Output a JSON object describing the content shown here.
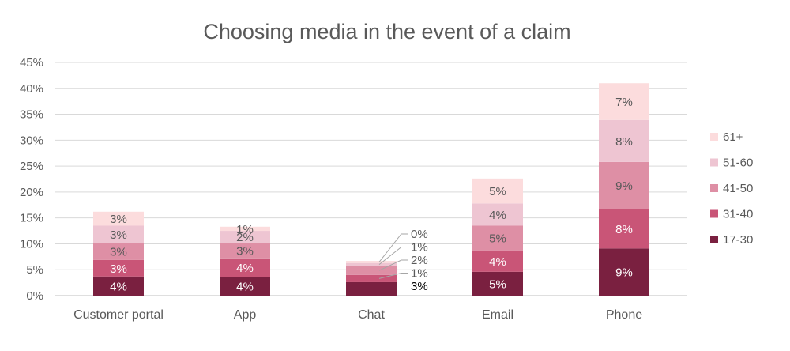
{
  "chart_data": {
    "type": "bar",
    "stacked": true,
    "title": "Choosing media in the event of a claim",
    "categories": [
      "Customer portal",
      "App",
      "Chat",
      "Email",
      "Phone"
    ],
    "ylim": [
      0,
      45
    ],
    "yticks": [
      "0%",
      "5%",
      "10%",
      "15%",
      "20%",
      "25%",
      "30%",
      "35%",
      "40%",
      "45%"
    ],
    "grid": true,
    "legend_position": "right",
    "series": [
      {
        "name": "17-30",
        "color": "#7a2040",
        "values": [
          3.7,
          3.6,
          2.6,
          4.6,
          9.1
        ],
        "labels": [
          "4%",
          "4%",
          "3%",
          "5%",
          "9%"
        ]
      },
      {
        "name": "31-40",
        "color": "#c95577",
        "values": [
          3.2,
          3.6,
          1.4,
          4.1,
          7.6
        ],
        "labels": [
          "3%",
          "4%",
          "1%",
          "4%",
          "8%"
        ]
      },
      {
        "name": "41-50",
        "color": "#de8fa5",
        "values": [
          3.3,
          3.0,
          1.7,
          4.8,
          9.1
        ],
        "labels": [
          "3%",
          "3%",
          "2%",
          "5%",
          "9%"
        ]
      },
      {
        "name": "51-60",
        "color": "#eec5d2",
        "values": [
          3.3,
          2.3,
          0.6,
          4.3,
          8.1
        ],
        "labels": [
          "3%",
          "2%",
          "1%",
          "4%",
          "8%"
        ]
      },
      {
        "name": "61+",
        "color": "#fcdcdd",
        "values": [
          2.7,
          0.8,
          0.4,
          4.8,
          7.1
        ],
        "labels": [
          "3%",
          "1%",
          "0%",
          "5%",
          "7%"
        ]
      }
    ]
  }
}
